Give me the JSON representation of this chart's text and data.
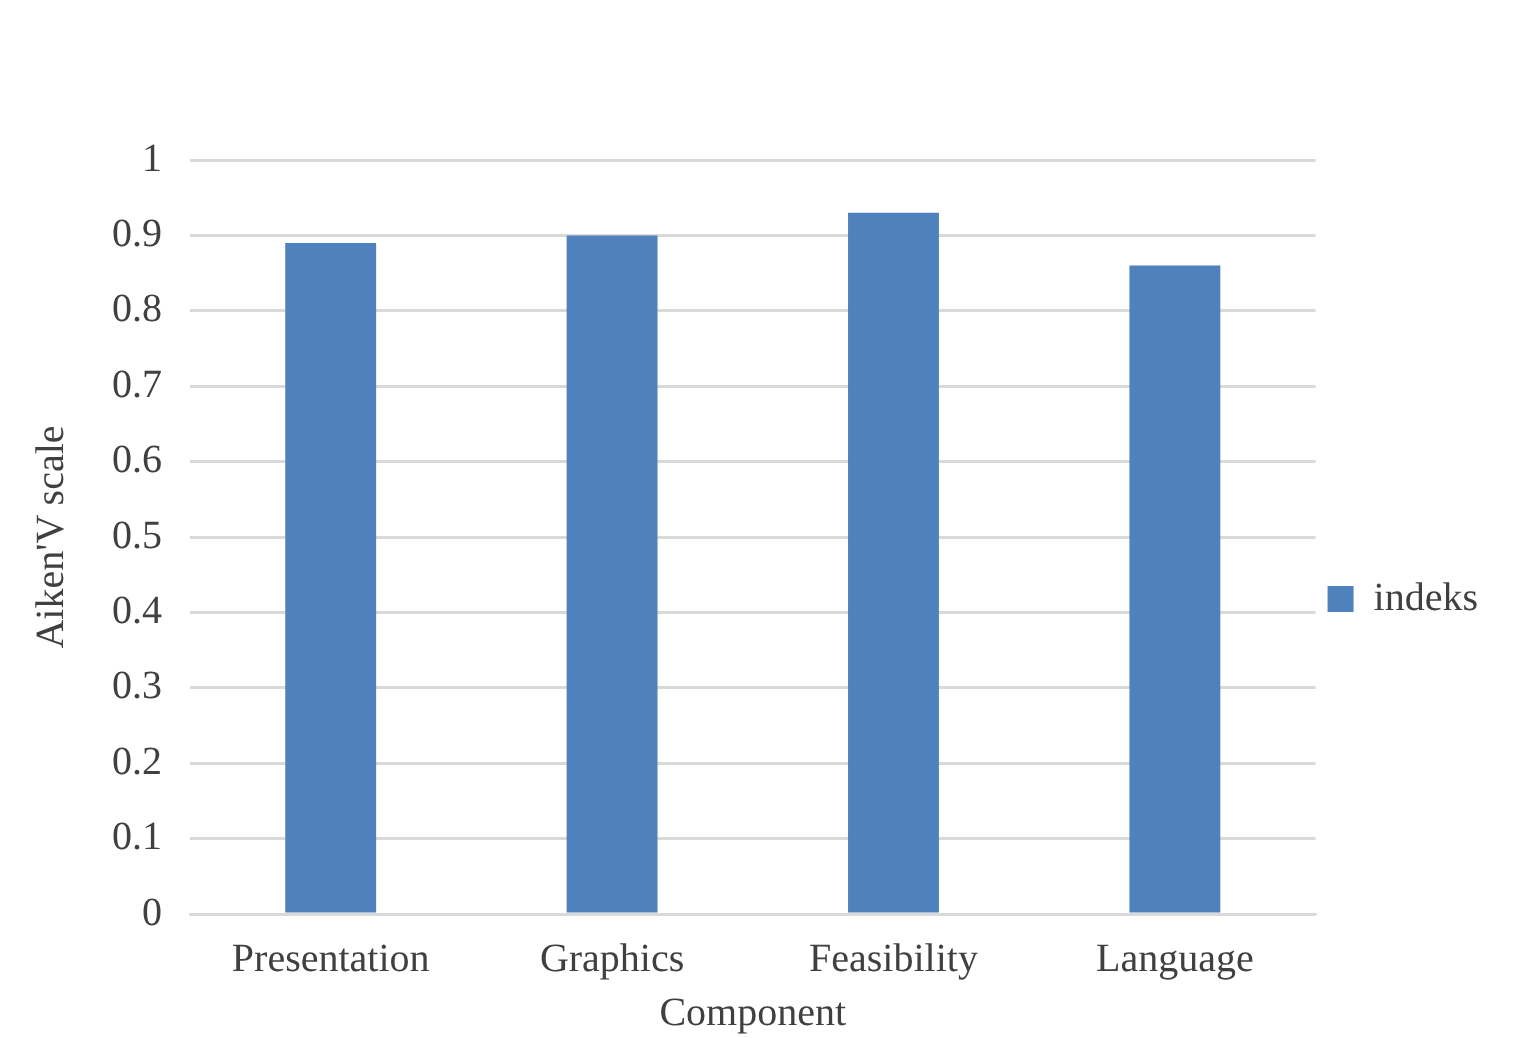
{
  "chart_data": {
    "type": "bar",
    "xlabel": "Component",
    "ylabel": "Aiken'V scale",
    "categories": [
      "Presentation",
      "Graphics",
      "Feasibility",
      "Language"
    ],
    "series": [
      {
        "name": "indeks",
        "color": "#4f81bd",
        "values": [
          0.89,
          0.9,
          0.93,
          0.86
        ]
      }
    ],
    "ylim": [
      0,
      1
    ],
    "yticks": [
      0,
      0.1,
      0.2,
      0.3,
      0.4,
      0.5,
      0.6,
      0.7,
      0.8,
      0.9,
      1
    ],
    "grid": "y",
    "legend": "right"
  }
}
